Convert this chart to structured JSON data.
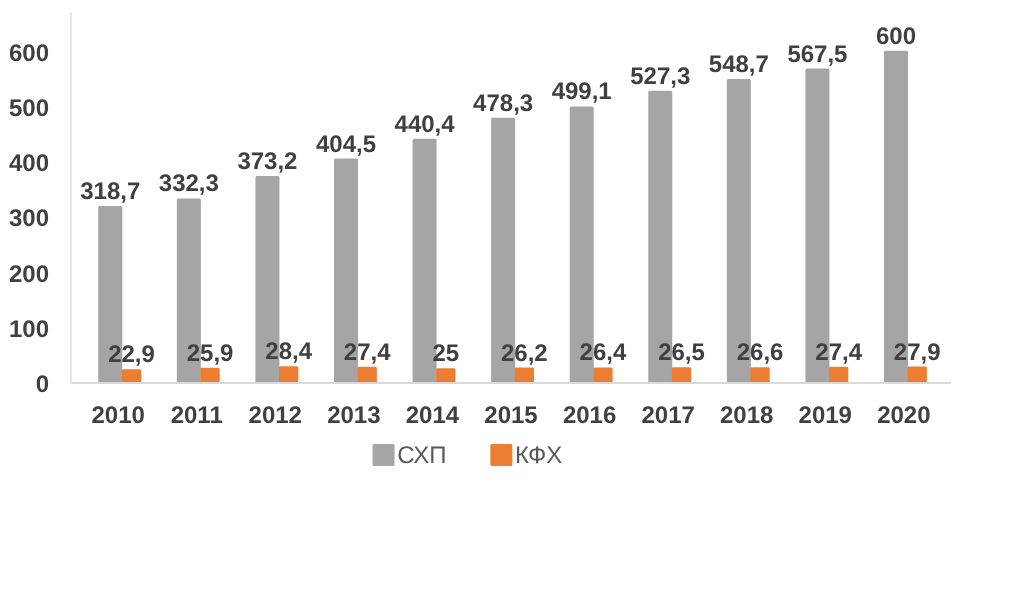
{
  "chart_data": {
    "type": "bar",
    "categories": [
      "2010",
      "2011",
      "2012",
      "2013",
      "2014",
      "2015",
      "2016",
      "2017",
      "2018",
      "2019",
      "2020"
    ],
    "series": [
      {
        "name": "СХП",
        "color": "#a5a5a5",
        "values": [
          318.7,
          332.3,
          373.2,
          404.5,
          440.4,
          478.3,
          499.1,
          527.3,
          548.7,
          567.5,
          600
        ],
        "value_labels": [
          "318,7",
          "332,3",
          "373,2",
          "404,5",
          "440,4",
          "478,3",
          "499,1",
          "527,3",
          "548,7",
          "567,5",
          "600"
        ]
      },
      {
        "name": "КФХ",
        "color": "#ed7d31",
        "values": [
          22.9,
          25.9,
          28.4,
          27.4,
          25,
          26.2,
          26.4,
          26.5,
          26.6,
          27.4,
          27.9
        ],
        "value_labels": [
          "22,9",
          "25,9",
          "28,4",
          "27,4",
          "25",
          "26,2",
          "26,4",
          "26,5",
          "26,6",
          "27,4",
          "27,9"
        ]
      }
    ],
    "ylim": [
      0,
      670
    ],
    "yticks": [
      0,
      100,
      200,
      300,
      400,
      500,
      600
    ],
    "grid": false,
    "legend": "bottom"
  }
}
